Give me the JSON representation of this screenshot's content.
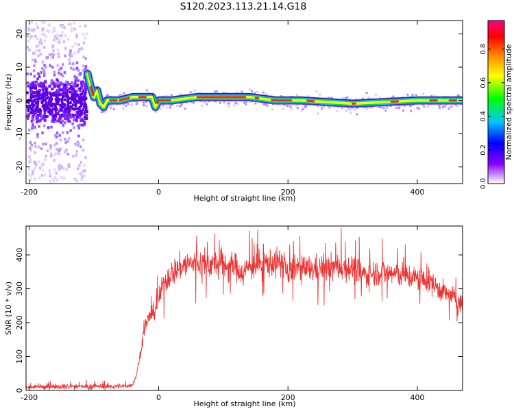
{
  "title": "S120.2023.113.21.14.G18",
  "chart_data": [
    {
      "type": "heatmap",
      "xlabel": "Height of straight line (km)",
      "ylabel": "Frequency (Hz)",
      "xlim": [
        -205,
        470
      ],
      "ylim": [
        -25,
        24
      ],
      "xticks": [
        "-200",
        "0",
        "200",
        "400"
      ],
      "xtick_values": [
        -200,
        0,
        200,
        400
      ],
      "yticks": [
        "20",
        "10",
        "0",
        "-10",
        "-20"
      ],
      "ytick_values": [
        20,
        10,
        0,
        -10,
        -20
      ],
      "colorbar": {
        "label": "Normalized spectral amplitude",
        "ticks": [
          "0.0",
          "0.2",
          "0.4",
          "0.6",
          "0.8"
        ],
        "tick_values": [
          0.0,
          0.2,
          0.4,
          0.6,
          0.8
        ],
        "range": [
          0,
          0.97
        ],
        "colors": [
          "#ffffff",
          "#8a00ff",
          "#0000ff",
          "#00c8ff",
          "#00ff00",
          "#ffff00",
          "#ff8c00",
          "#ff0000",
          "#ff0080"
        ]
      },
      "ridge": {
        "x": [
          -110,
          -105,
          -100,
          -95,
          -90,
          -85,
          -80,
          -70,
          -60,
          -40,
          -20,
          -10,
          -5,
          0,
          20,
          60,
          100,
          140,
          180,
          200,
          220,
          300,
          400,
          470
        ],
        "y": [
          8,
          4,
          1,
          3,
          -1,
          -2,
          0,
          0,
          0,
          1,
          1,
          1,
          -2,
          0,
          0,
          1,
          1,
          1,
          0,
          0,
          0,
          -1,
          0,
          0
        ]
      }
    },
    {
      "type": "line",
      "xlabel": "Height of straight line (km)",
      "ylabel": "SNR (10 * v/v)",
      "xlim": [
        -205,
        470
      ],
      "ylim": [
        0,
        485
      ],
      "xticks": [
        "-200",
        "0",
        "200",
        "400"
      ],
      "xtick_values": [
        -200,
        0,
        200,
        400
      ],
      "yticks": [
        "0",
        "100",
        "200",
        "300",
        "400"
      ],
      "ytick_values": [
        0,
        100,
        200,
        300,
        400
      ],
      "color": "#ee3333",
      "series": [
        {
          "x": [
            -205,
            -150,
            -100,
            -60,
            -45,
            -40,
            -35,
            -30,
            -25,
            -20,
            -15,
            -10,
            -5,
            0,
            5,
            10,
            15,
            20,
            30,
            40,
            50,
            60,
            80,
            100,
            120,
            130,
            140,
            160,
            180,
            195,
            200,
            210,
            220,
            250,
            280,
            300,
            320,
            340,
            360,
            380,
            400,
            420,
            440,
            460,
            470
          ],
          "y": [
            10,
            12,
            12,
            12,
            14,
            20,
            40,
            90,
            150,
            195,
            215,
            225,
            240,
            270,
            300,
            320,
            335,
            345,
            360,
            370,
            375,
            375,
            372,
            370,
            365,
            345,
            365,
            375,
            375,
            380,
            330,
            370,
            355,
            360,
            365,
            360,
            340,
            350,
            345,
            340,
            330,
            320,
            290,
            270,
            250
          ]
        }
      ]
    }
  ]
}
